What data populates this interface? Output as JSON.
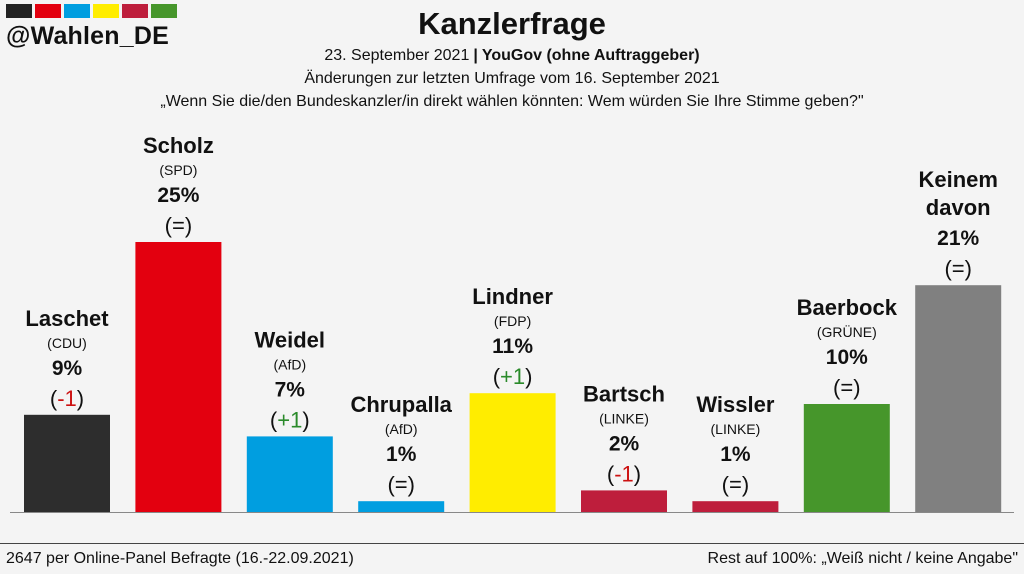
{
  "brand": {
    "handle": "@Wahlen_DE",
    "stripe_colors": [
      "#222222",
      "#e3000f",
      "#009ee0",
      "#ffed00",
      "#be1e3c",
      "#46962b"
    ]
  },
  "header": {
    "title": "Kanzlerfrage",
    "date": "23. September 2021",
    "separator": "|",
    "source": "YouGov (ohne Auftraggeber)",
    "changes_note": "Änderungen zur letzten Umfrage vom 16. September 2021",
    "question": "„Wenn Sie die/den Bundeskanzler/in direkt wählen könnten: Wem würden Sie Ihre Stimme geben?\""
  },
  "footer": {
    "sample": "2647 per Online-Panel Befragte (16.-22.09.2021)",
    "rest": "Rest auf 100%: „Weiß nicht / keine Angabe\""
  },
  "chart_data": {
    "type": "bar",
    "title": "Kanzlerfrage",
    "unit": "%",
    "ylim": [
      0,
      25
    ],
    "categories": [
      "Laschet",
      "Scholz",
      "Weidel",
      "Chrupalla",
      "Lindner",
      "Bartsch",
      "Wissler",
      "Baerbock",
      "Keinem davon"
    ],
    "parties": [
      "(CDU)",
      "(SPD)",
      "(AfD)",
      "(AfD)",
      "(FDP)",
      "(LINKE)",
      "(LINKE)",
      "(GRÜNE)",
      ""
    ],
    "values": [
      9,
      25,
      7,
      1,
      11,
      2,
      1,
      10,
      21
    ],
    "value_labels": [
      "9%",
      "25%",
      "7%",
      "1%",
      "11%",
      "2%",
      "1%",
      "10%",
      "21%"
    ],
    "change_labels": [
      "-1",
      "=",
      "+1",
      "=",
      "+1",
      "-1",
      "=",
      "=",
      "="
    ],
    "colors": [
      "#2d2d2d",
      "#e3000f",
      "#009ee0",
      "#009ee0",
      "#ffed00",
      "#be1e3c",
      "#be1e3c",
      "#46962b",
      "#808080"
    ],
    "change_colors": {
      "up": "#2a8a2a",
      "down": "#cc1111",
      "same": "#111111"
    }
  }
}
